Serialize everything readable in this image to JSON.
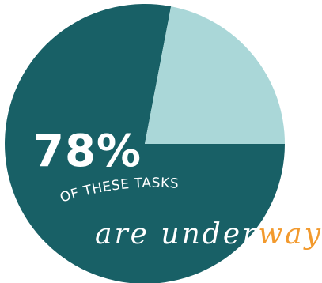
{
  "chart_data": {
    "type": "pie",
    "values": [
      78,
      22
    ],
    "colors": [
      "#186066",
      "#aad7d8"
    ],
    "value_label": "78%",
    "annotation_line1": "OF THESE TASKS",
    "annotation_line2_part1": "are under",
    "annotation_line2_part2": "way!"
  },
  "colors": {
    "primary": "#186066",
    "secondary": "#aad7d8",
    "accent": "#f29a2e",
    "text": "#ffffff"
  }
}
